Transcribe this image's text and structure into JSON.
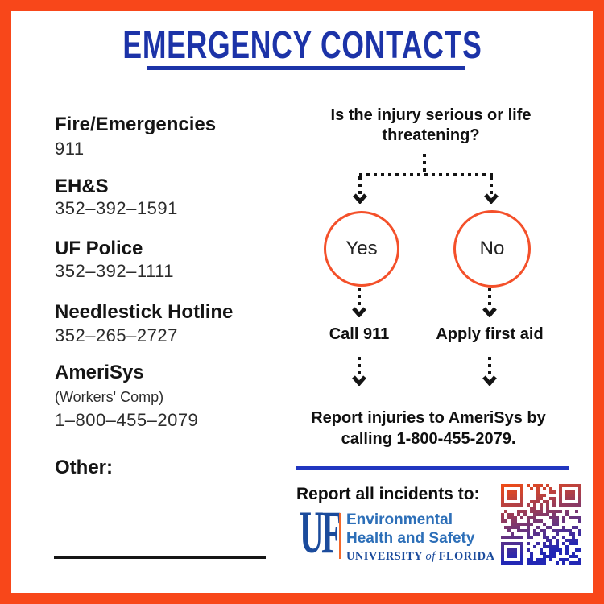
{
  "title": {
    "text": "EMERGENCY CONTACTS",
    "color": "#1c33a8"
  },
  "contacts": {
    "items": [
      {
        "label": "Fire/Emergencies",
        "number": "911"
      },
      {
        "label": "EH&S",
        "number": "352–392–1591"
      },
      {
        "label": "UF Police",
        "number": "352–392–1111"
      },
      {
        "label": "Needlestick Hotline",
        "number": "352–265–2727"
      },
      {
        "label": "AmeriSys",
        "sublabel": "(Workers' Comp)",
        "number": "1–800–455–2079"
      },
      {
        "label": "Other:",
        "number": ""
      }
    ]
  },
  "flowchart": {
    "question": "Is the injury serious or life threatening?",
    "yes_label": "Yes",
    "no_label": "No",
    "yes_action": "Call 911",
    "no_action": "Apply first aid",
    "outcome": "Report injuries to AmeriSys by calling 1-800-455-2079.",
    "node_stroke_color": "#f4502a"
  },
  "footer": {
    "heading": "Report all incidents to:",
    "logo": {
      "monogram": "UF",
      "line1": "Environmental",
      "line2": "Health and Safety",
      "line3_a": "UNIVERSITY",
      "line3_b": "of",
      "line3_c": "FLORIDA"
    },
    "qr": {
      "icon": "qr-code",
      "color_start": "#ee4b17",
      "color_end": "#2227b5"
    }
  },
  "colors": {
    "border_orange": "#f8471a",
    "title_blue": "#1c33a8",
    "divider_blue": "#2136c0",
    "uf_blue": "#1b4b9c",
    "ehs_blue": "#2d6fb8",
    "logo_bar_orange": "#f4682a"
  }
}
